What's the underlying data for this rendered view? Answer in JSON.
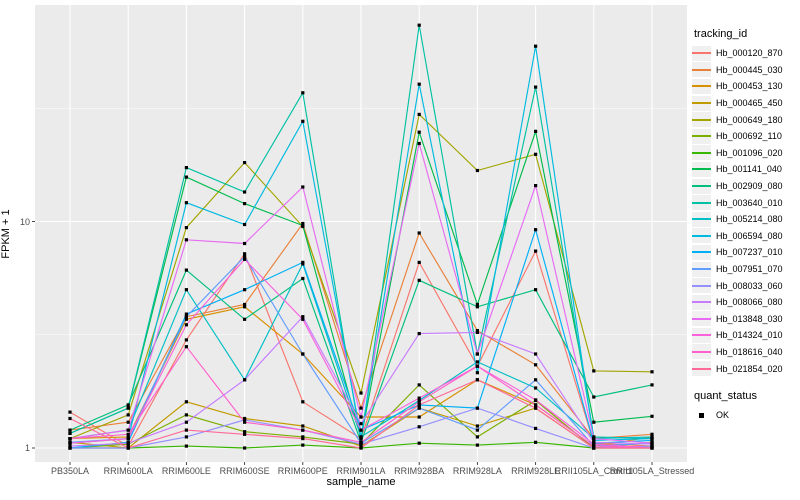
{
  "chart_data": {
    "type": "line",
    "title": "",
    "xlabel": "sample_name",
    "ylabel": "FPKM + 1",
    "y_scale": "log10",
    "ylim": [
      0.88,
      90
    ],
    "grid": "on",
    "legend_position": "right",
    "y_ticks": [
      {
        "label": "1",
        "value": 1
      },
      {
        "label": "10",
        "value": 10
      }
    ],
    "y_minor_gridlines": [
      3.1623,
      31.623
    ],
    "x_categories": [
      "PB350LA",
      "RRIM600LA",
      "RRIM600LE",
      "RRIM600SE",
      "RRIM600PE",
      "RRIM901LA",
      "RRIM928BA",
      "RRIM928LA",
      "RRIM928LE",
      "RRII105LA_Control",
      "RRII105LA_Stressed"
    ],
    "legend": {
      "color_title": "tracking_id",
      "shape_title": "quant_status",
      "shape_entries": [
        "OK"
      ]
    },
    "point_shape": "black-square",
    "series": [
      {
        "name": "Hb_000120_870",
        "color": "#F8766D",
        "values": [
          1.44,
          1.02,
          3.0,
          7.2,
          1.6,
          1.1,
          6.6,
          2.3,
          7.4,
          1.05,
          1.02
        ]
      },
      {
        "name": "Hb_000445_030",
        "color": "#E8813A",
        "values": [
          1.2,
          1.3,
          3.8,
          4.3,
          9.8,
          1.5,
          8.9,
          3.3,
          2.33,
          1.1,
          1.15
        ]
      },
      {
        "name": "Hb_000453_130",
        "color": "#D89000",
        "values": [
          1.1,
          1.12,
          3.7,
          4.2,
          2.6,
          1.37,
          1.37,
          2.0,
          1.55,
          1.02,
          1.12
        ]
      },
      {
        "name": "Hb_000465_450",
        "color": "#C09B00",
        "values": [
          1.06,
          1.0,
          1.6,
          1.35,
          1.25,
          1.02,
          1.5,
          1.25,
          1.5,
          1.0,
          1.06
        ]
      },
      {
        "name": "Hb_000649_180",
        "color": "#A3A500",
        "values": [
          1.1,
          1.4,
          9.4,
          18.2,
          9.5,
          1.75,
          29.7,
          16.8,
          19.8,
          2.19,
          2.17
        ]
      },
      {
        "name": "Hb_000692_110",
        "color": "#7CAE00",
        "values": [
          1.0,
          1.04,
          1.4,
          1.18,
          1.12,
          1.04,
          1.9,
          1.12,
          1.62,
          1.0,
          1.02
        ]
      },
      {
        "name": "Hb_001096_020",
        "color": "#39B600",
        "values": [
          1.0,
          1.0,
          1.02,
          1.0,
          1.03,
          1.0,
          1.05,
          1.03,
          1.06,
          1.0,
          1.0
        ]
      },
      {
        "name": "Hb_001141_040",
        "color": "#00BB4E",
        "values": [
          1.16,
          1.5,
          15.7,
          12.0,
          9.6,
          1.1,
          24.8,
          4.3,
          25.0,
          1.3,
          1.38
        ]
      },
      {
        "name": "Hb_002909_080",
        "color": "#00BF7D",
        "values": [
          1.2,
          1.55,
          6.1,
          3.7,
          5.6,
          1.06,
          5.5,
          4.2,
          5.0,
          1.68,
          1.9
        ]
      },
      {
        "name": "Hb_003640_010",
        "color": "#00C1A3",
        "values": [
          1.16,
          1.5,
          17.3,
          13.5,
          37.0,
          1.06,
          73.6,
          2.6,
          39.2,
          1.12,
          1.1
        ]
      },
      {
        "name": "Hb_005214_080",
        "color": "#00BFC4",
        "values": [
          1.1,
          1.2,
          5.0,
          2.0,
          6.5,
          1.12,
          1.62,
          2.4,
          1.84,
          1.1,
          1.12
        ]
      },
      {
        "name": "Hb_006594_080",
        "color": "#00BAE0",
        "values": [
          1.05,
          1.1,
          12.1,
          9.7,
          27.7,
          1.12,
          40.4,
          2.15,
          59.4,
          1.08,
          1.1
        ]
      },
      {
        "name": "Hb_007237_010",
        "color": "#00B0F6",
        "values": [
          1.0,
          1.06,
          3.9,
          5.0,
          6.6,
          1.2,
          1.55,
          1.5,
          9.2,
          1.05,
          1.08
        ]
      },
      {
        "name": "Hb_007951_070",
        "color": "#619CFF",
        "values": [
          1.06,
          1.1,
          3.8,
          7.0,
          2.6,
          1.05,
          1.5,
          1.2,
          2.0,
          1.02,
          1.05
        ]
      },
      {
        "name": "Hb_008033_060",
        "color": "#9590FF",
        "values": [
          1.0,
          1.0,
          1.12,
          1.33,
          1.2,
          1.04,
          1.24,
          1.5,
          1.22,
          1.0,
          1.02
        ]
      },
      {
        "name": "Hb_008066_080",
        "color": "#C77CFF",
        "values": [
          1.02,
          1.05,
          1.3,
          2.0,
          3.8,
          1.28,
          3.2,
          3.24,
          2.6,
          1.06,
          1.04
        ]
      },
      {
        "name": "Hb_013848_030",
        "color": "#E76BF3",
        "values": [
          1.1,
          1.2,
          8.3,
          8.0,
          14.2,
          1.37,
          22.1,
          2.6,
          14.4,
          1.1,
          1.05
        ]
      },
      {
        "name": "Hb_014324_010",
        "color": "#FA62DB",
        "values": [
          1.05,
          1.1,
          3.5,
          6.8,
          3.7,
          1.2,
          1.66,
          2.3,
          1.63,
          1.04,
          1.0
        ]
      },
      {
        "name": "Hb_018616_040",
        "color": "#FF61CC",
        "values": [
          1.1,
          1.15,
          2.8,
          1.3,
          1.2,
          1.06,
          1.6,
          2.3,
          1.55,
          1.02,
          1.0
        ]
      },
      {
        "name": "Hb_021854_020",
        "color": "#FF6A98",
        "values": [
          1.35,
          1.0,
          1.2,
          1.15,
          1.1,
          1.0,
          1.55,
          2.0,
          1.5,
          1.0,
          1.0
        ]
      }
    ]
  },
  "colors": {
    "panel_background": "#EBEBEB",
    "gridline": "#FFFFFF",
    "tick_text": "#4D4D4D",
    "axis_title_text": "#000000",
    "point": "#000000",
    "tick_mark": "#333333",
    "legend_key_background": "#F0F0F0"
  }
}
